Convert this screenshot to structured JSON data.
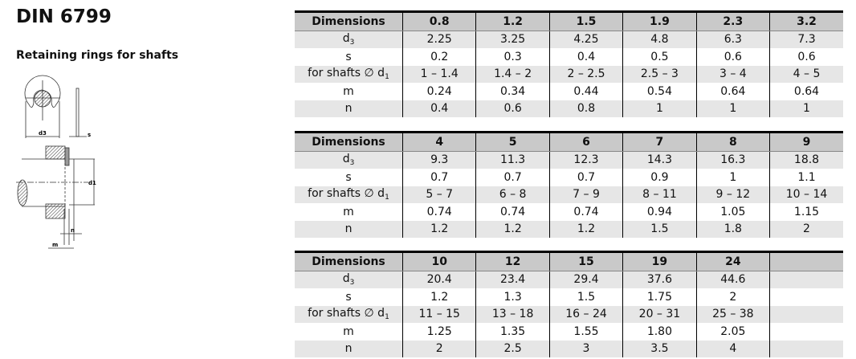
{
  "title": "DIN 6799",
  "subtitle": "Retaining rings for shafts",
  "drawing": {
    "labels": {
      "d3": "d3",
      "s": "s",
      "d1": "d1",
      "n": "n",
      "m": "m"
    }
  },
  "row_labels": {
    "header": "Dimensions",
    "d3": "d",
    "d3_sub": "3",
    "s": "s",
    "shafts": "for shafts ∅ d",
    "shafts_sub": "1",
    "m": "m",
    "n": "n"
  },
  "tables": [
    {
      "sizes": [
        "0.8",
        "1.2",
        "1.5",
        "1.9",
        "2.3",
        "3.2"
      ],
      "d3": [
        "2.25",
        "3.25",
        "4.25",
        "4.8",
        "6.3",
        "7.3"
      ],
      "s": [
        "0.2",
        "0.3",
        "0.4",
        "0.5",
        "0.6",
        "0.6"
      ],
      "shafts": [
        "1 – 1.4",
        "1.4 – 2",
        "2 – 2.5",
        "2.5 – 3",
        "3 – 4",
        "4 – 5"
      ],
      "m": [
        "0.24",
        "0.34",
        "0.44",
        "0.54",
        "0.64",
        "0.64"
      ],
      "n": [
        "0.4",
        "0.6",
        "0.8",
        "1",
        "1",
        "1"
      ]
    },
    {
      "sizes": [
        "4",
        "5",
        "6",
        "7",
        "8",
        "9"
      ],
      "d3": [
        "9.3",
        "11.3",
        "12.3",
        "14.3",
        "16.3",
        "18.8"
      ],
      "s": [
        "0.7",
        "0.7",
        "0.7",
        "0.9",
        "1",
        "1.1"
      ],
      "shafts": [
        "5 – 7",
        "6 – 8",
        "7 – 9",
        "8 – 11",
        "9 – 12",
        "10 – 14"
      ],
      "m": [
        "0.74",
        "0.74",
        "0.74",
        "0.94",
        "1.05",
        "1.15"
      ],
      "n": [
        "1.2",
        "1.2",
        "1.2",
        "1.5",
        "1.8",
        "2"
      ]
    },
    {
      "sizes": [
        "10",
        "12",
        "15",
        "19",
        "24",
        ""
      ],
      "d3": [
        "20.4",
        "23.4",
        "29.4",
        "37.6",
        "44.6",
        ""
      ],
      "s": [
        "1.2",
        "1.3",
        "1.5",
        "1.75",
        "2",
        ""
      ],
      "shafts": [
        "11 – 15",
        "13 – 18",
        "16 – 24",
        "20 – 31",
        "25 – 38",
        ""
      ],
      "m": [
        "1.25",
        "1.35",
        "1.55",
        "1.80",
        "2.05",
        ""
      ],
      "n": [
        "2",
        "2.5",
        "3",
        "3.5",
        "4",
        ""
      ]
    }
  ]
}
